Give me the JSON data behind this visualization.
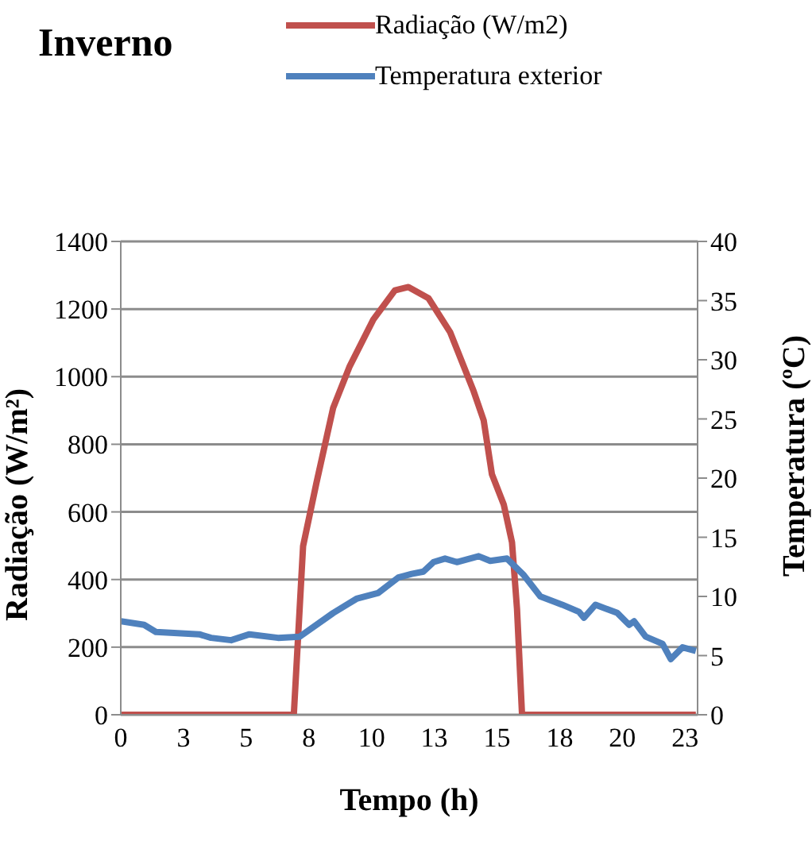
{
  "chart_data": {
    "type": "line",
    "title": "Inverno",
    "xlabel": "Tempo (h)",
    "ylabel": "Radiação (W/m²)",
    "y2label": "Temperatura (ºC)",
    "xlim": [
      0,
      23
    ],
    "xticks": [
      0,
      {
        "value": 2.5,
        "label": "3"
      },
      5,
      {
        "value": 7.5,
        "label": "8"
      },
      10,
      {
        "value": 12.5,
        "label": "13"
      },
      15,
      {
        "value": 17.5,
        "label": "18"
      },
      20,
      {
        "value": 22.5,
        "label": "23"
      }
    ],
    "ylim": [
      0,
      1400
    ],
    "yticks": [
      0,
      200,
      400,
      600,
      800,
      1000,
      1200,
      1400
    ],
    "y2lim": [
      0,
      40
    ],
    "y2ticks": [
      0,
      5,
      10,
      15,
      20,
      25,
      30,
      35,
      40
    ],
    "grid": "y",
    "legend": "top",
    "marker": "none",
    "line_style": "solid",
    "series": [
      {
        "name": "Radiação (W/m2)",
        "color": "#c0504d",
        "x": [
          0,
          6.9,
          7.27,
          7.8,
          8.47,
          9.13,
          10.07,
          10.93,
          11.47,
          12.27,
          13.13,
          14.07,
          14.47,
          14.8,
          15.27,
          15.6,
          15.8,
          16.0,
          22.93
        ],
        "values": [
          0,
          0,
          499,
          685,
          908,
          1031,
          1169,
          1255,
          1265,
          1232,
          1132,
          957,
          871,
          711,
          622,
          510,
          313,
          0,
          0
        ]
      },
      {
        "name": "Temperatura exterior",
        "color": "#4f81bd",
        "axis": "y2",
        "x": [
          0,
          0.93,
          1.4,
          2.27,
          3.13,
          3.6,
          4.4,
          5.13,
          6.27,
          7.13,
          8.47,
          9.4,
          10.27,
          11.07,
          11.6,
          12.07,
          12.47,
          12.93,
          13.4,
          14.27,
          14.73,
          15.4,
          16.07,
          16.73,
          17.6,
          18.27,
          18.47,
          18.93,
          19.8,
          20.27,
          20.47,
          20.93,
          21.6,
          21.93,
          22.4,
          22.93
        ],
        "values": [
          7.9,
          7.6,
          7.0,
          6.9,
          6.8,
          6.5,
          6.3,
          6.8,
          6.5,
          6.6,
          8.6,
          9.8,
          10.3,
          11.6,
          11.9,
          12.1,
          12.9,
          13.2,
          12.9,
          13.4,
          13.0,
          13.2,
          11.8,
          10.0,
          9.3,
          8.7,
          8.2,
          9.3,
          8.6,
          7.6,
          7.9,
          6.6,
          6.0,
          4.7,
          5.7,
          5.4
        ]
      }
    ]
  }
}
